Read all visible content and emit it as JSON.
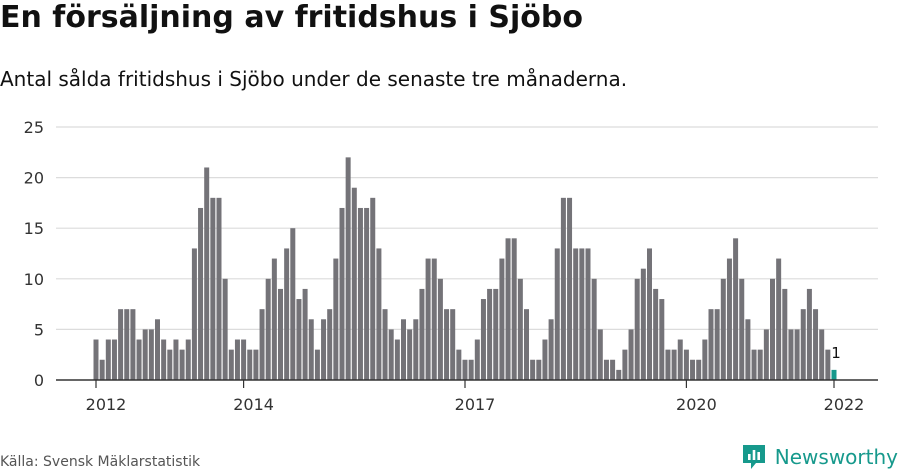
{
  "header": {
    "title": "En försäljning av fritidshus i Sjöbo",
    "subtitle": "Antal sålda fritidshus i Sjöbo under de senaste tre månaderna."
  },
  "footer": {
    "source": "Källa: Svensk Mäklarstatistik",
    "brand": "Newsworthy",
    "brand_icon": "newsworthy-logo-icon"
  },
  "colors": {
    "bar": "#747378",
    "highlight": "#16998c",
    "grid": "#dcdcdc",
    "axis": "#333333",
    "brand": "#16998c"
  },
  "chart_data": {
    "type": "bar",
    "title": "En försäljning av fritidshus i Sjöbo",
    "subtitle": "Antal sålda fritidshus i Sjöbo under de senaste tre månaderna.",
    "xlabel": "",
    "ylabel": "",
    "ylim": [
      0,
      25
    ],
    "yticks": [
      0,
      5,
      10,
      15,
      20,
      25
    ],
    "xticks": [
      "2012",
      "2014",
      "2017",
      "2020",
      "2022"
    ],
    "grid": true,
    "x_start": "2012-01",
    "x_end": "2022-01",
    "highlight_index": 120,
    "highlight_label": "1",
    "values": [
      4,
      2,
      4,
      4,
      7,
      7,
      7,
      4,
      5,
      5,
      6,
      4,
      3,
      4,
      3,
      4,
      13,
      17,
      21,
      18,
      18,
      10,
      3,
      4,
      4,
      3,
      3,
      7,
      10,
      12,
      9,
      13,
      15,
      8,
      9,
      6,
      3,
      6,
      7,
      12,
      17,
      22,
      19,
      17,
      17,
      18,
      13,
      7,
      5,
      4,
      6,
      5,
      6,
      9,
      12,
      12,
      10,
      7,
      7,
      3,
      2,
      2,
      4,
      8,
      9,
      9,
      12,
      14,
      14,
      10,
      7,
      2,
      2,
      4,
      6,
      13,
      18,
      18,
      13,
      13,
      13,
      10,
      5,
      2,
      2,
      1,
      3,
      5,
      10,
      11,
      13,
      9,
      8,
      3,
      3,
      4,
      3,
      2,
      2,
      4,
      7,
      7,
      10,
      12,
      14,
      10,
      6,
      3,
      3,
      5,
      10,
      12,
      9,
      5,
      5,
      7,
      9,
      7,
      5,
      3,
      1
    ]
  }
}
